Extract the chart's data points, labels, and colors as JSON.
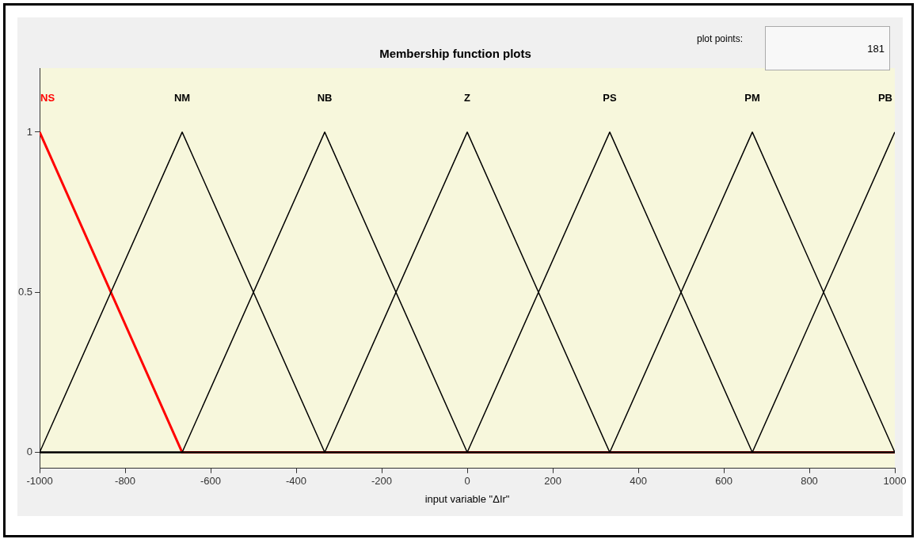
{
  "chart_data": {
    "type": "line",
    "title": "Membership function plots",
    "xlabel": "input variable \"ΔIr\"",
    "annotations": [
      "plot points:",
      "181"
    ],
    "xlim": [
      -1000,
      1000
    ],
    "xticks": [
      -1000,
      -800,
      -600,
      -400,
      -200,
      0,
      200,
      400,
      600,
      800,
      1000
    ],
    "ylim": [
      -0.05,
      1.2
    ],
    "yticks": [
      0,
      0.5,
      1
    ],
    "grid": false,
    "legend": false,
    "series": [
      {
        "name": "NS",
        "color": "#ff0000",
        "x": [
          -1000,
          -666.7,
          1000
        ],
        "values": [
          1,
          0,
          0
        ]
      },
      {
        "name": "NM",
        "color": "#000000",
        "x": [
          -1000,
          -666.7,
          -333.3,
          1000
        ],
        "values": [
          0,
          1,
          0,
          0
        ]
      },
      {
        "name": "NB",
        "color": "#000000",
        "x": [
          -1000,
          -666.7,
          -333.3,
          0,
          1000
        ],
        "values": [
          0,
          0,
          1,
          0,
          0
        ]
      },
      {
        "name": "Z",
        "color": "#000000",
        "x": [
          -1000,
          -333.3,
          0,
          333.3,
          1000
        ],
        "values": [
          0,
          0,
          1,
          0,
          0
        ]
      },
      {
        "name": "PS",
        "color": "#000000",
        "x": [
          -1000,
          0,
          333.3,
          666.7,
          1000
        ],
        "values": [
          0,
          0,
          1,
          0,
          0
        ]
      },
      {
        "name": "PM",
        "color": "#000000",
        "x": [
          -1000,
          333.3,
          666.7,
          1000
        ],
        "values": [
          0,
          0,
          1,
          0
        ]
      },
      {
        "name": "PB",
        "color": "#000000",
        "x": [
          -1000,
          666.7,
          1000
        ],
        "values": [
          0,
          0,
          1
        ]
      }
    ]
  }
}
